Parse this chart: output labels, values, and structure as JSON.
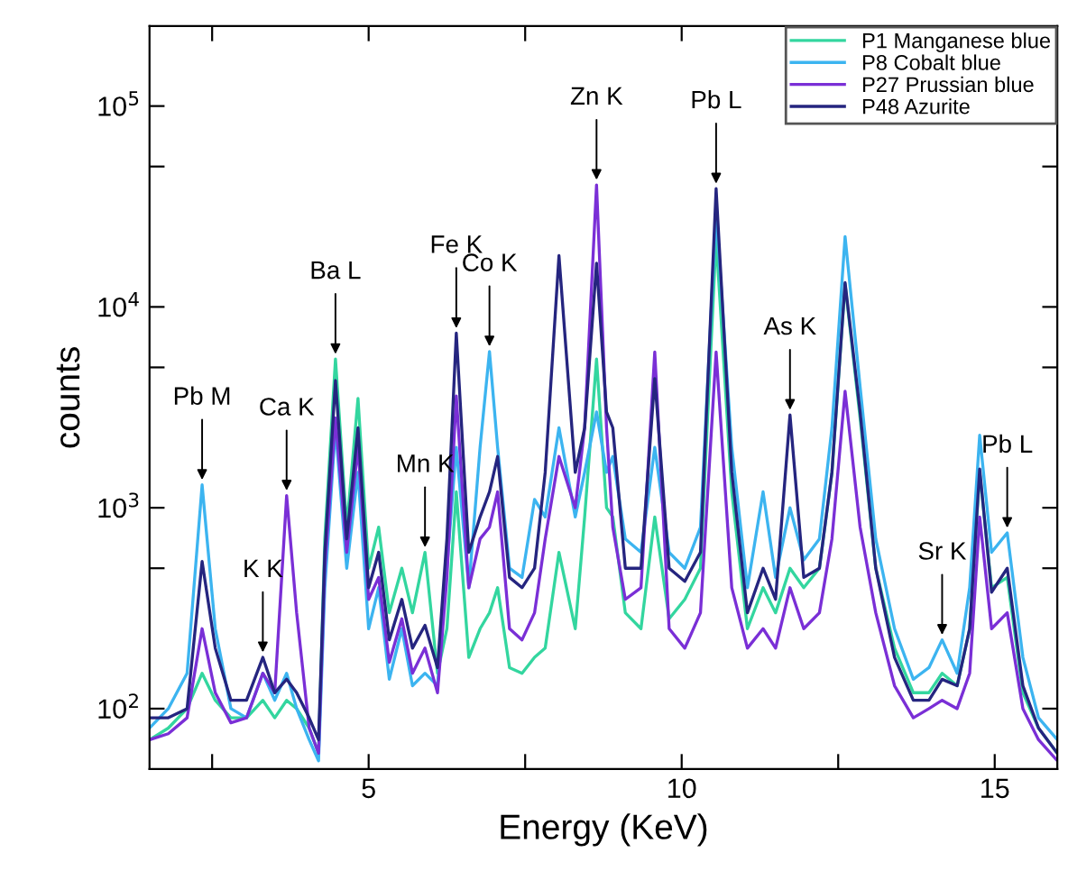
{
  "chart_data": {
    "type": "line",
    "xlabel": "Energy (KeV)",
    "ylabel": "counts",
    "log": "y",
    "grid": false,
    "legend": "top right",
    "line_style": "solid",
    "marker": "none",
    "x": [
      1.5,
      1.8,
      2.1,
      2.34,
      2.55,
      2.8,
      3.05,
      3.31,
      3.5,
      3.69,
      3.85,
      4.05,
      4.2,
      4.3,
      4.47,
      4.65,
      4.83,
      5.0,
      5.16,
      5.33,
      5.53,
      5.7,
      5.9,
      6.1,
      6.25,
      6.4,
      6.6,
      6.78,
      6.93,
      7.06,
      7.25,
      7.45,
      7.65,
      7.82,
      8.04,
      8.3,
      8.45,
      8.64,
      8.8,
      8.9,
      9.1,
      9.35,
      9.57,
      9.8,
      10.05,
      10.3,
      10.55,
      10.8,
      11.05,
      11.3,
      11.5,
      11.73,
      11.95,
      12.2,
      12.4,
      12.61,
      12.85,
      13.1,
      13.4,
      13.7,
      13.95,
      14.16,
      14.4,
      14.6,
      14.76,
      14.95,
      15.2,
      15.45,
      15.7,
      16.0
    ],
    "series": [
      {
        "name": "P1 Manganese blue",
        "color": "#33d69f",
        "values": [
          70,
          80,
          100,
          150,
          110,
          90,
          90,
          110,
          90,
          110,
          100,
          80,
          60,
          700,
          5500,
          800,
          3500,
          500,
          800,
          300,
          500,
          300,
          600,
          150,
          250,
          1200,
          180,
          250,
          300,
          400,
          160,
          150,
          180,
          200,
          600,
          250,
          900,
          5500,
          1000,
          900,
          300,
          250,
          900,
          280,
          350,
          500,
          22000,
          1200,
          250,
          400,
          300,
          500,
          400,
          500,
          1500,
          13000,
          2800,
          500,
          200,
          120,
          120,
          150,
          130,
          250,
          1500,
          400,
          450,
          120,
          80,
          60
        ]
      },
      {
        "name": "P8 Cobalt blue",
        "color": "#3cb4f0",
        "values": [
          80,
          100,
          150,
          1300,
          250,
          100,
          90,
          150,
          110,
          150,
          100,
          70,
          55,
          400,
          2500,
          500,
          1500,
          250,
          400,
          140,
          250,
          130,
          150,
          130,
          500,
          2000,
          400,
          2000,
          6000,
          2000,
          500,
          450,
          1100,
          900,
          2500,
          900,
          1500,
          3000,
          1500,
          1800,
          700,
          600,
          2000,
          600,
          500,
          800,
          30000,
          2000,
          400,
          1200,
          450,
          1000,
          550,
          700,
          2500,
          22400,
          4000,
          700,
          250,
          140,
          160,
          220,
          150,
          400,
          2300,
          600,
          750,
          180,
          90,
          70
        ]
      },
      {
        "name": "P27 Prussian blue",
        "color": "#7a2fd6",
        "values": [
          70,
          75,
          90,
          250,
          120,
          85,
          90,
          150,
          120,
          1150,
          300,
          80,
          60,
          500,
          2800,
          600,
          2000,
          350,
          450,
          170,
          280,
          150,
          200,
          120,
          450,
          3600,
          400,
          700,
          800,
          1200,
          250,
          220,
          300,
          700,
          1800,
          1000,
          2500,
          40500,
          2500,
          800,
          350,
          400,
          5960,
          250,
          200,
          300,
          5960,
          400,
          200,
          250,
          200,
          400,
          250,
          300,
          700,
          3800,
          800,
          300,
          130,
          90,
          100,
          110,
          100,
          150,
          900,
          250,
          300,
          100,
          70,
          55
        ]
      },
      {
        "name": "P48 Azurite",
        "color": "#25257f",
        "values": [
          90,
          90,
          100,
          540,
          200,
          110,
          110,
          180,
          120,
          140,
          120,
          90,
          70,
          600,
          4300,
          700,
          2500,
          400,
          600,
          220,
          350,
          200,
          260,
          160,
          700,
          7400,
          600,
          900,
          1200,
          1800,
          450,
          400,
          500,
          1500,
          18000,
          1500,
          2500,
          16500,
          3000,
          2500,
          500,
          500,
          4400,
          500,
          430,
          600,
          38800,
          1500,
          300,
          500,
          350,
          2900,
          450,
          500,
          1500,
          13200,
          3000,
          500,
          180,
          110,
          110,
          140,
          130,
          250,
          1560,
          380,
          500,
          130,
          80,
          60
        ]
      }
    ],
    "xlim": [
      1.5,
      16
    ],
    "xticks": [
      {
        "value": 2.5,
        "label": null
      },
      5,
      {
        "value": 7.5,
        "label": null
      },
      10,
      {
        "value": 12.5,
        "label": null
      },
      15
    ],
    "ylim": [
      50,
      250000
    ],
    "yticks": [
      {
        "value": 100,
        "label": "10$^{2}$"
      },
      {
        "value": 500,
        "label": null
      },
      {
        "value": 1000,
        "label": "10$^{3}$"
      },
      {
        "value": 5000,
        "label": null
      },
      {
        "value": 10000,
        "label": "10$^{4}$"
      },
      {
        "value": 50000,
        "label": null
      },
      {
        "value": 100000,
        "label": "10$^{5}$"
      }
    ],
    "annotations": [
      {
        "text": "Pb M",
        "x": 2.34,
        "y": 1300
      },
      {
        "text": "K K",
        "x": 3.31,
        "y": 180
      },
      {
        "text": "Ca K",
        "x": 3.69,
        "y": 1150
      },
      {
        "text": "Ba L",
        "x": 4.47,
        "y": 5500
      },
      {
        "text": "Mn K",
        "x": 5.9,
        "y": 600
      },
      {
        "text": "Fe K",
        "x": 6.4,
        "y": 7400
      },
      {
        "text": "Co K",
        "x": 6.93,
        "y": 6000
      },
      {
        "text": "Zn K",
        "x": 8.64,
        "y": 40500
      },
      {
        "text": "Pb L",
        "x": 10.55,
        "y": 38800
      },
      {
        "text": "As K",
        "x": 11.73,
        "y": 2900
      },
      {
        "text": "Sr K",
        "x": 14.16,
        "y": 220
      },
      {
        "text": "Pb L",
        "x": 15.2,
        "y": 750
      }
    ]
  }
}
